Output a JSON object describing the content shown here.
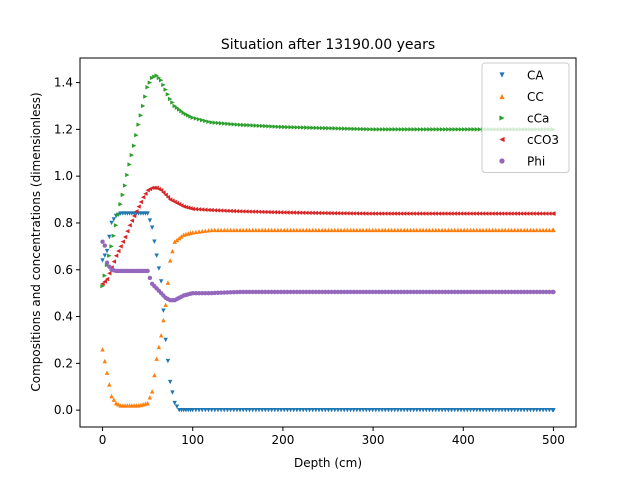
{
  "chart_data": {
    "type": "scatter",
    "title": "Situation after 13190.00 years",
    "xlabel": "Depth (cm)",
    "ylabel": "Compositions and concentrations (dimensionless)",
    "xlim": [
      -25,
      525
    ],
    "ylim": [
      -0.072,
      1.505
    ],
    "xticks": [
      0,
      100,
      200,
      300,
      400,
      500
    ],
    "yticks": [
      0.0,
      0.2,
      0.4,
      0.6,
      0.8,
      1.0,
      1.2,
      1.4
    ],
    "grid": false,
    "legend_position": "top-right",
    "series": [
      {
        "name": "CA",
        "color": "#1f77b4",
        "marker": "triangle-down",
        "points": [
          [
            0,
            0.64
          ],
          [
            5,
            0.68
          ],
          [
            10,
            0.8
          ],
          [
            15,
            0.83
          ],
          [
            20,
            0.84
          ],
          [
            30,
            0.84
          ],
          [
            40,
            0.84
          ],
          [
            50,
            0.84
          ],
          [
            55,
            0.78
          ],
          [
            60,
            0.66
          ],
          [
            65,
            0.55
          ],
          [
            70,
            0.3
          ],
          [
            75,
            0.12
          ],
          [
            80,
            0.03
          ],
          [
            85,
            0.0
          ],
          [
            100,
            0.0
          ],
          [
            200,
            0.0
          ],
          [
            300,
            0.0
          ],
          [
            400,
            0.0
          ],
          [
            500,
            0.0
          ]
        ]
      },
      {
        "name": "CC",
        "color": "#ff7f0e",
        "marker": "triangle-up",
        "points": [
          [
            0,
            0.26
          ],
          [
            5,
            0.16
          ],
          [
            10,
            0.06
          ],
          [
            15,
            0.03
          ],
          [
            20,
            0.02
          ],
          [
            30,
            0.02
          ],
          [
            40,
            0.02
          ],
          [
            50,
            0.03
          ],
          [
            55,
            0.08
          ],
          [
            60,
            0.22
          ],
          [
            65,
            0.32
          ],
          [
            70,
            0.45
          ],
          [
            75,
            0.64
          ],
          [
            80,
            0.72
          ],
          [
            90,
            0.75
          ],
          [
            100,
            0.76
          ],
          [
            120,
            0.77
          ],
          [
            150,
            0.77
          ],
          [
            200,
            0.77
          ],
          [
            300,
            0.77
          ],
          [
            400,
            0.77
          ],
          [
            500,
            0.77
          ]
        ]
      },
      {
        "name": "cCa",
        "color": "#2ca02c",
        "marker": "triangle-right",
        "points": [
          [
            0,
            0.53
          ],
          [
            5,
            0.62
          ],
          [
            10,
            0.7
          ],
          [
            15,
            0.79
          ],
          [
            20,
            0.88
          ],
          [
            25,
            0.96
          ],
          [
            30,
            1.05
          ],
          [
            35,
            1.13
          ],
          [
            40,
            1.22
          ],
          [
            45,
            1.3
          ],
          [
            50,
            1.38
          ],
          [
            55,
            1.42
          ],
          [
            60,
            1.43
          ],
          [
            65,
            1.41
          ],
          [
            70,
            1.37
          ],
          [
            75,
            1.33
          ],
          [
            80,
            1.3
          ],
          [
            90,
            1.27
          ],
          [
            100,
            1.25
          ],
          [
            120,
            1.23
          ],
          [
            150,
            1.22
          ],
          [
            200,
            1.21
          ],
          [
            250,
            1.205
          ],
          [
            300,
            1.2
          ],
          [
            400,
            1.2
          ],
          [
            500,
            1.2
          ]
        ]
      },
      {
        "name": "cCO3",
        "color": "#d62728",
        "marker": "triangle-left",
        "points": [
          [
            0,
            0.54
          ],
          [
            5,
            0.56
          ],
          [
            10,
            0.61
          ],
          [
            15,
            0.66
          ],
          [
            20,
            0.7
          ],
          [
            25,
            0.74
          ],
          [
            30,
            0.79
          ],
          [
            35,
            0.83
          ],
          [
            40,
            0.87
          ],
          [
            45,
            0.91
          ],
          [
            50,
            0.94
          ],
          [
            55,
            0.95
          ],
          [
            60,
            0.95
          ],
          [
            65,
            0.94
          ],
          [
            70,
            0.92
          ],
          [
            75,
            0.9
          ],
          [
            80,
            0.89
          ],
          [
            90,
            0.87
          ],
          [
            100,
            0.86
          ],
          [
            120,
            0.855
          ],
          [
            150,
            0.85
          ],
          [
            200,
            0.845
          ],
          [
            250,
            0.842
          ],
          [
            300,
            0.84
          ],
          [
            400,
            0.84
          ],
          [
            500,
            0.84
          ]
        ]
      },
      {
        "name": "Phi",
        "color": "#9467bd",
        "marker": "circle",
        "points": [
          [
            0,
            0.72
          ],
          [
            3,
            0.7
          ],
          [
            5,
            0.63
          ],
          [
            8,
            0.61
          ],
          [
            10,
            0.6
          ],
          [
            15,
            0.595
          ],
          [
            20,
            0.595
          ],
          [
            30,
            0.595
          ],
          [
            40,
            0.595
          ],
          [
            50,
            0.595
          ],
          [
            52,
            0.57
          ],
          [
            55,
            0.54
          ],
          [
            60,
            0.52
          ],
          [
            65,
            0.5
          ],
          [
            70,
            0.48
          ],
          [
            75,
            0.47
          ],
          [
            80,
            0.47
          ],
          [
            90,
            0.49
          ],
          [
            100,
            0.5
          ],
          [
            120,
            0.5
          ],
          [
            150,
            0.505
          ],
          [
            200,
            0.505
          ],
          [
            300,
            0.505
          ],
          [
            400,
            0.505
          ],
          [
            500,
            0.505
          ]
        ]
      }
    ]
  }
}
